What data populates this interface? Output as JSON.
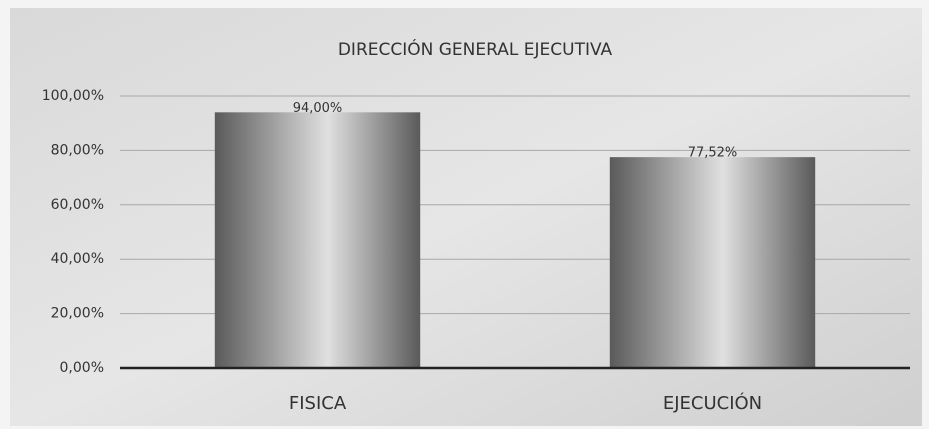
{
  "chart_data": {
    "type": "bar",
    "title": "DIRECCIÓN GENERAL EJECUTIVA",
    "categories": [
      "FISICA",
      "EJECUCIÓN"
    ],
    "values": [
      94,
      77.52
    ],
    "value_labels": [
      "94,00%",
      "77,52%"
    ],
    "color": "#5a5a5a",
    "ylim": [
      0,
      100
    ],
    "yticks": [
      {
        "value": 0,
        "label": "0,00%"
      },
      {
        "value": 20,
        "label": "20,00%"
      },
      {
        "value": 40,
        "label": "40,00%"
      },
      {
        "value": 60,
        "label": "60,00%"
      },
      {
        "value": 80,
        "label": "80,00%"
      },
      {
        "value": 100,
        "label": "100,00%"
      }
    ],
    "grid": true
  }
}
